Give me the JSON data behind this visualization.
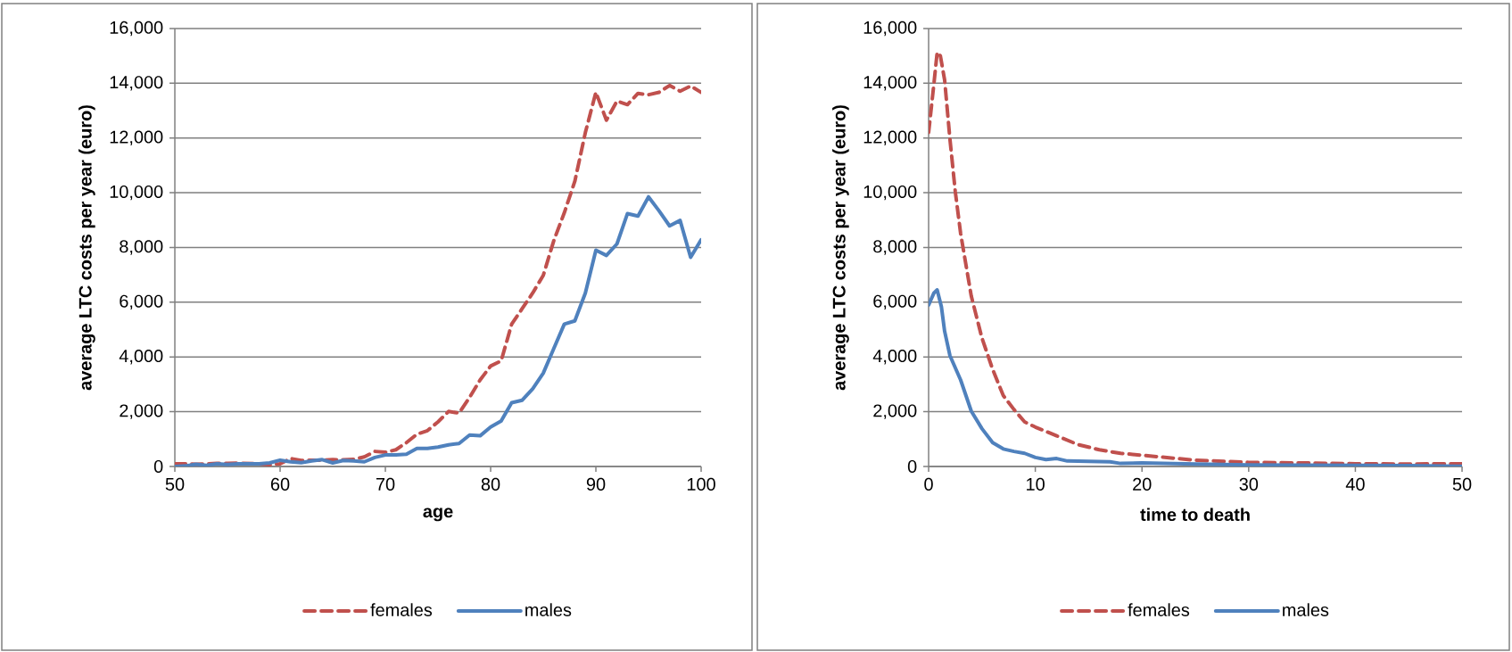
{
  "chart_data": [
    {
      "type": "line",
      "xlabel": "age",
      "ylabel": "average LTC costs per year (euro)",
      "xlim": [
        50,
        100
      ],
      "xticks": [
        50,
        60,
        70,
        80,
        90,
        100
      ],
      "ylim": [
        0,
        16000
      ],
      "yticks": [
        {
          "value": 0,
          "label": "0"
        },
        {
          "value": 2000,
          "label": "2,000"
        },
        {
          "value": 4000,
          "label": "4,000"
        },
        {
          "value": 6000,
          "label": "6,000"
        },
        {
          "value": 8000,
          "label": "8,000"
        },
        {
          "value": 10000,
          "label": "10,000"
        },
        {
          "value": 12000,
          "label": "12,000"
        },
        {
          "value": 14000,
          "label": "14,000"
        },
        {
          "value": 16000,
          "label": "16,000"
        }
      ],
      "grid": "y",
      "legend": "bottom",
      "marker": "none",
      "x": [
        50,
        51,
        52,
        53,
        54,
        55,
        56,
        57,
        58,
        59,
        60,
        61,
        62,
        63,
        64,
        65,
        66,
        67,
        68,
        69,
        70,
        71,
        72,
        73,
        74,
        75,
        76,
        77,
        78,
        79,
        80,
        81,
        82,
        83,
        84,
        85,
        86,
        87,
        88,
        89,
        90,
        91,
        92,
        93,
        94,
        95,
        96,
        97,
        98,
        99,
        100
      ],
      "series": [
        {
          "name": "females",
          "color": "#c0504d",
          "line_style": "dashed",
          "values": [
            100,
            100,
            80,
            90,
            110,
            110,
            120,
            110,
            100,
            60,
            100,
            290,
            220,
            230,
            230,
            250,
            240,
            260,
            350,
            550,
            520,
            610,
            870,
            1180,
            1310,
            1630,
            2010,
            1950,
            2520,
            3160,
            3670,
            3860,
            5200,
            5770,
            6340,
            6980,
            8250,
            9270,
            10420,
            12200,
            13670,
            12650,
            13350,
            13220,
            13630,
            13580,
            13670,
            13920,
            13710,
            13900,
            13670
          ]
        },
        {
          "name": "males",
          "color": "#4f81bd",
          "line_style": "solid",
          "values": [
            0,
            20,
            80,
            40,
            100,
            70,
            100,
            100,
            100,
            130,
            230,
            170,
            140,
            200,
            250,
            130,
            220,
            200,
            170,
            330,
            420,
            420,
            450,
            660,
            660,
            710,
            790,
            840,
            1150,
            1120,
            1440,
            1660,
            2330,
            2420,
            2840,
            3410,
            4310,
            5200,
            5320,
            6340,
            7900,
            7710,
            8130,
            9240,
            9150,
            9850,
            9340,
            8790,
            8990,
            7640,
            8280
          ]
        }
      ]
    },
    {
      "type": "line",
      "xlabel": "time to death",
      "ylabel": "average LTC costs per year (euro)",
      "xlim": [
        0,
        50
      ],
      "xticks": [
        0,
        10,
        20,
        30,
        40,
        50
      ],
      "ylim": [
        0,
        16000
      ],
      "yticks": [
        {
          "value": 0,
          "label": "0"
        },
        {
          "value": 2000,
          "label": "2,000"
        },
        {
          "value": 4000,
          "label": "4,000"
        },
        {
          "value": 6000,
          "label": "6,000"
        },
        {
          "value": 8000,
          "label": "8,000"
        },
        {
          "value": 10000,
          "label": "10,000"
        },
        {
          "value": 12000,
          "label": "12,000"
        },
        {
          "value": 14000,
          "label": "14,000"
        },
        {
          "value": 16000,
          "label": "16,000"
        }
      ],
      "grid": "y",
      "legend": "bottom",
      "marker": "none",
      "series": [
        {
          "name": "females",
          "color": "#c0504d",
          "line_style": "dashed",
          "x": [
            0,
            0.5,
            0.8,
            1.1,
            1.5,
            2,
            2.5,
            3,
            4,
            5,
            6,
            7,
            8,
            9,
            10,
            12,
            14,
            16,
            18,
            20,
            25,
            30,
            35,
            40,
            45,
            50
          ],
          "values": [
            12200,
            14000,
            15130,
            15000,
            14120,
            11950,
            10040,
            8510,
            6220,
            4690,
            3550,
            2590,
            2080,
            1630,
            1440,
            1120,
            800,
            610,
            480,
            410,
            230,
            150,
            130,
            100,
            90,
            100
          ]
        },
        {
          "name": "males",
          "color": "#4f81bd",
          "line_style": "solid",
          "x": [
            0,
            0.5,
            0.8,
            1.2,
            1.5,
            2,
            3,
            4,
            5,
            6,
            7,
            8,
            9,
            10,
            11,
            12,
            13,
            15,
            17,
            18,
            20,
            25,
            30,
            35,
            40,
            45,
            50
          ],
          "values": [
            5900,
            6340,
            6450,
            5830,
            4940,
            4050,
            3160,
            2020,
            1380,
            870,
            640,
            550,
            480,
            330,
            250,
            290,
            200,
            190,
            170,
            110,
            130,
            90,
            60,
            50,
            40,
            30,
            10
          ]
        }
      ]
    }
  ]
}
